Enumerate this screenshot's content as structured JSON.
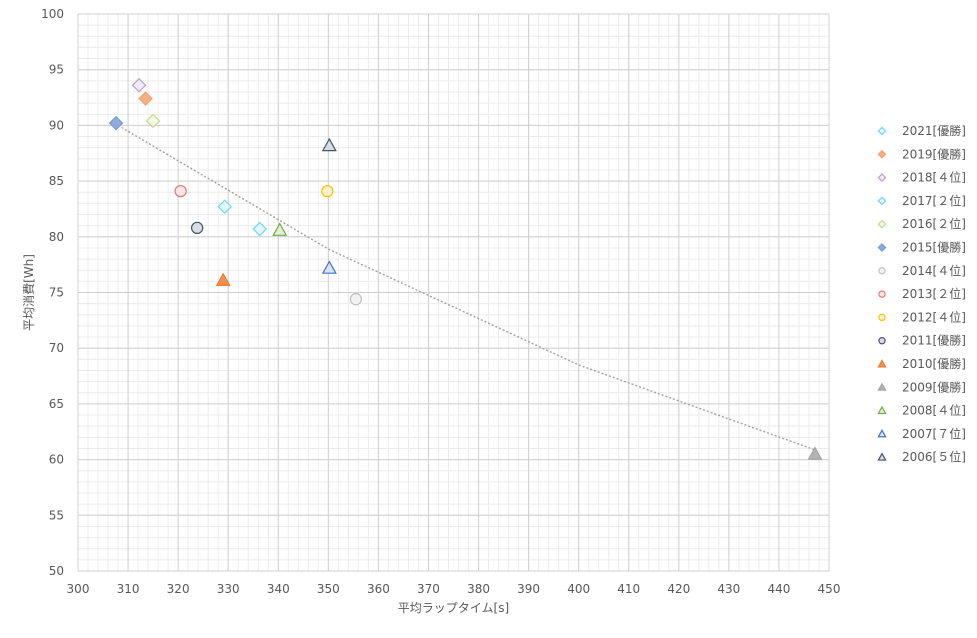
{
  "chart_data": {
    "type": "scatter",
    "title": "",
    "xlabel": "平均ラップタイム[s]",
    "ylabel": "平均消費[Wh]",
    "xlim": [
      300,
      450
    ],
    "ylim": [
      50,
      100
    ],
    "x_major_step": 10,
    "y_major_step": 5,
    "x_minor_step": 2,
    "y_minor_step": 1,
    "grid": "major and minor",
    "legend_position": "right",
    "series": [
      {
        "name": "2021[優勝]",
        "marker": "diamond",
        "color": "#6fd8f0",
        "fill": false,
        "points": [
          [
            336.3,
            80.7
          ]
        ]
      },
      {
        "name": "2019[優勝]",
        "marker": "diamond",
        "color": "#f4a26e",
        "fill": true,
        "points": [
          [
            313.5,
            92.4
          ]
        ]
      },
      {
        "name": "2018[４位]",
        "marker": "diamond",
        "color": "#b8a0d4",
        "fill": false,
        "points": [
          [
            312.2,
            93.6
          ]
        ]
      },
      {
        "name": "2017[２位]",
        "marker": "diamond",
        "color": "#6fd8f0",
        "fill": false,
        "points": [
          [
            329.3,
            82.7
          ]
        ]
      },
      {
        "name": "2016[２位]",
        "marker": "diamond",
        "color": "#c4dc8a",
        "fill": false,
        "points": [
          [
            315.0,
            90.4
          ]
        ]
      },
      {
        "name": "2015[優勝]",
        "marker": "diamond",
        "color": "#7b9bd8",
        "fill": true,
        "points": [
          [
            307.6,
            90.2
          ]
        ]
      },
      {
        "name": "2014[４位]",
        "marker": "circle",
        "color": "#bfbfbf",
        "fill": false,
        "points": [
          [
            355.5,
            74.4
          ]
        ]
      },
      {
        "name": "2013[２位]",
        "marker": "circle",
        "color": "#e07b7b",
        "fill": false,
        "points": [
          [
            320.5,
            84.1
          ]
        ]
      },
      {
        "name": "2012[４位]",
        "marker": "circle",
        "color": "#ffc000",
        "fill": false,
        "points": [
          [
            349.8,
            84.1
          ]
        ]
      },
      {
        "name": "2011[優勝]",
        "marker": "circle",
        "color": "#44546a",
        "fill": false,
        "points": [
          [
            323.8,
            80.8
          ]
        ]
      },
      {
        "name": "2010[優勝]",
        "marker": "triangle",
        "color": "#ed7d31",
        "fill": true,
        "points": [
          [
            329.0,
            76.1
          ]
        ]
      },
      {
        "name": "2009[優勝]",
        "marker": "triangle",
        "color": "#a5a5a5",
        "fill": true,
        "points": [
          [
            447.2,
            60.5
          ]
        ]
      },
      {
        "name": "2008[４位]",
        "marker": "triangle",
        "color": "#70ad47",
        "fill": false,
        "points": [
          [
            340.3,
            80.6
          ]
        ]
      },
      {
        "name": "2007[７位]",
        "marker": "triangle",
        "color": "#4472c4",
        "fill": false,
        "points": [
          [
            350.2,
            77.2
          ]
        ]
      },
      {
        "name": "2006[５位]",
        "marker": "triangle",
        "color": "#44546a",
        "fill": false,
        "points": [
          [
            350.2,
            88.2
          ]
        ]
      }
    ],
    "trendline": {
      "type": "power",
      "style": "dotted",
      "color": "#a0a0a0",
      "points": [
        [
          308.0,
          90.0
        ],
        [
          350.0,
          78.9
        ],
        [
          400.0,
          68.5
        ],
        [
          447.0,
          60.9
        ]
      ]
    }
  }
}
